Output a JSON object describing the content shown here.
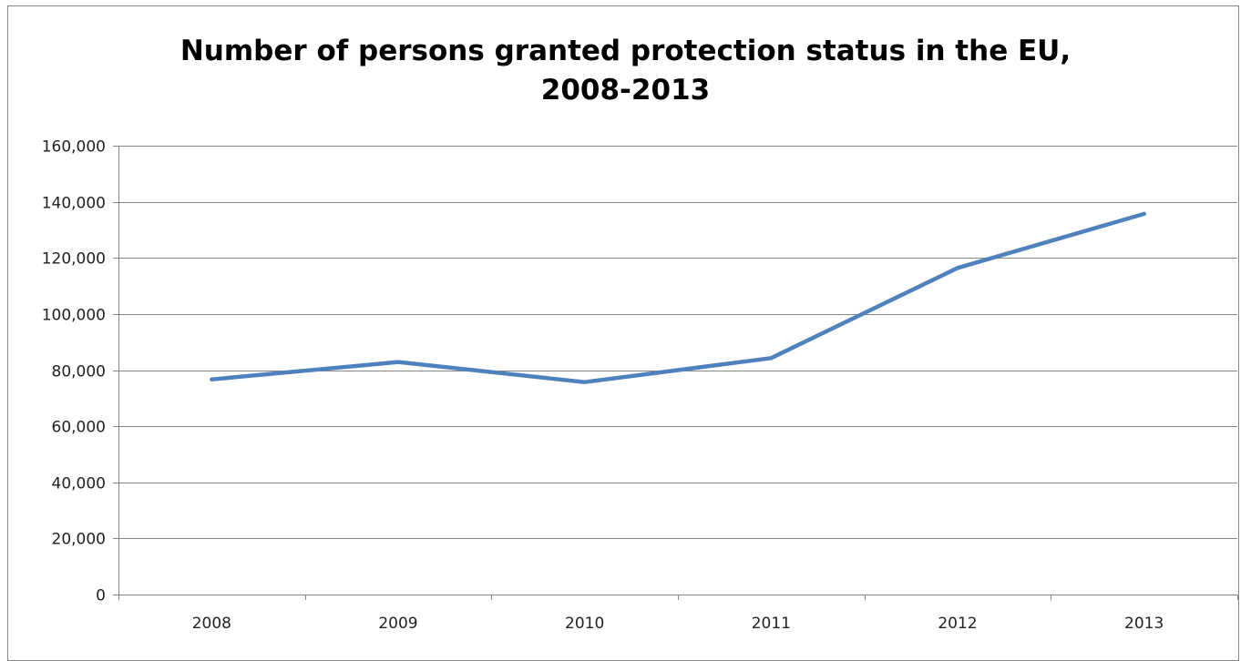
{
  "chart_data": {
    "type": "line",
    "title_lines": [
      "Number of persons granted protection status in the EU,",
      "2008-2013"
    ],
    "xlabel": "",
    "ylabel": "",
    "categories": [
      "2008",
      "2009",
      "2010",
      "2011",
      "2012",
      "2013"
    ],
    "series": [
      {
        "values": [
          76700,
          82900,
          75700,
          84300,
          116400,
          135700
        ],
        "color": "#4F81BD"
      }
    ],
    "ylim": [
      0,
      160000
    ],
    "y_ticks": [
      0,
      20000,
      40000,
      60000,
      80000,
      100000,
      120000,
      140000,
      160000
    ],
    "y_tick_labels": [
      "0",
      "20,000",
      "40,000",
      "60,000",
      "80,000",
      "100,000",
      "120,000",
      "140,000",
      "160,000"
    ],
    "grid": true,
    "legend": "none"
  }
}
